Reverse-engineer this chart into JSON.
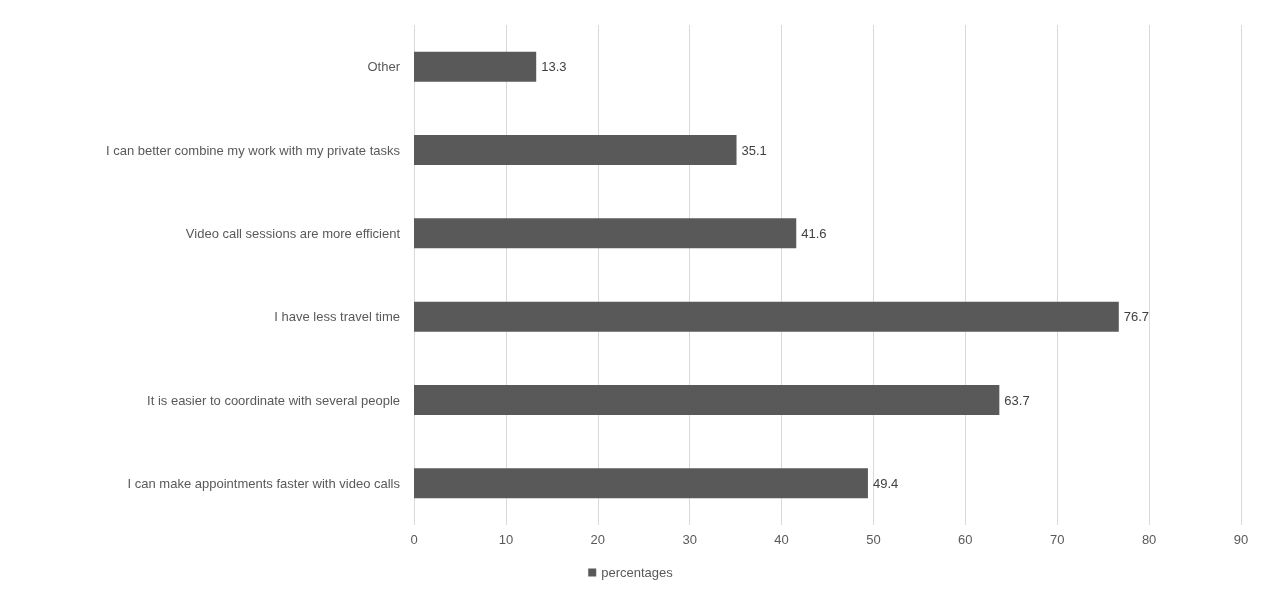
{
  "chart_data": {
    "type": "bar",
    "orientation": "horizontal",
    "categories": [
      "Other",
      "I can better combine my work with my private tasks",
      "Video call sessions are more efficient",
      "I have less travel time",
      "It is easier to coordinate with several people",
      "I can make appointments faster with video calls"
    ],
    "series": [
      {
        "name": "percentages",
        "color": "#595959",
        "values": [
          13.3,
          35.1,
          41.6,
          76.7,
          63.7,
          49.4
        ]
      }
    ],
    "xlim": [
      0,
      90
    ],
    "xticks": [
      0,
      10,
      20,
      30,
      40,
      50,
      60,
      70,
      80,
      90
    ],
    "grid": "x",
    "legend": "bottom",
    "data_labels": true
  }
}
